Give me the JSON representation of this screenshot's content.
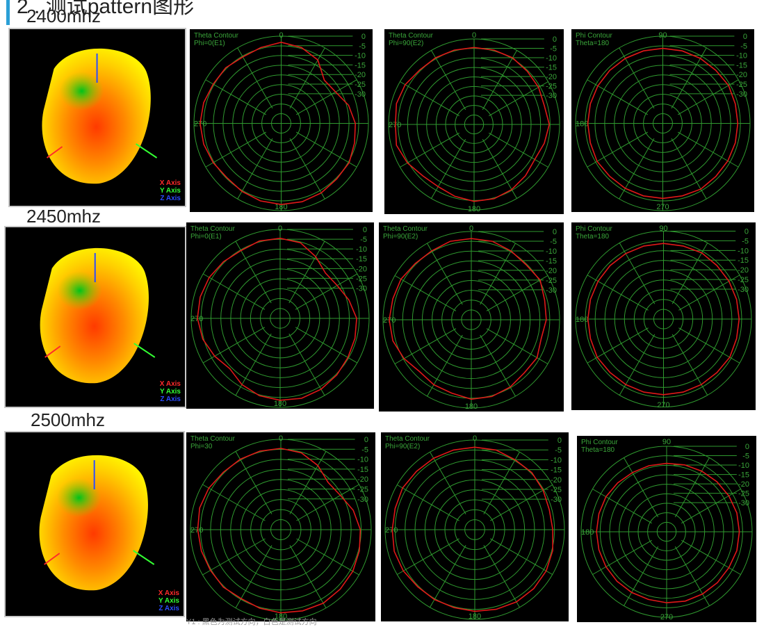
{
  "page": {
    "top_heading": "2 . 测试pattern图形",
    "caption": "Y1 : 黑色为测试方向，白色是测试方向"
  },
  "rows": [
    {
      "frequency": "2400mhz",
      "view3d": {
        "legend": [
          "X Axis",
          "Y Axis",
          "Z Axis"
        ]
      },
      "polars": [
        {
          "title": "Theta Contour",
          "subtitle": "Phi=0(E1)",
          "ticks": {
            "top": "0",
            "left": "270",
            "bottom": "180"
          }
        },
        {
          "title": "Theta Contour",
          "subtitle": "Phi=90(E2)",
          "ticks": {
            "top": "0",
            "left": "270",
            "bottom": "180"
          }
        },
        {
          "title": "Phi Contour",
          "subtitle": "Theta=180",
          "ticks": {
            "top": "90",
            "left": "180",
            "bottom": "270"
          }
        }
      ]
    },
    {
      "frequency": "2450mhz",
      "view3d": {
        "legend": [
          "X Axis",
          "Y Axis",
          "Z Axis"
        ]
      },
      "polars": [
        {
          "title": "Theta Contour",
          "subtitle": "Phi=0(E1)",
          "ticks": {
            "top": "0",
            "left": "270",
            "bottom": "180"
          }
        },
        {
          "title": "Theta Contour",
          "subtitle": "Phi=90(E2)",
          "ticks": {
            "top": "0",
            "left": "270",
            "bottom": "180"
          }
        },
        {
          "title": "Phi Contour",
          "subtitle": "Theta=180",
          "ticks": {
            "top": "90",
            "left": "180",
            "bottom": "270"
          }
        }
      ]
    },
    {
      "frequency": "2500mhz",
      "view3d": {
        "legend": [
          "X Axis",
          "Y Axis",
          "Z Axis"
        ]
      },
      "polars": [
        {
          "title": "Theta Contour",
          "subtitle": "Phi=30",
          "ticks": {
            "top": "0",
            "left": "270",
            "bottom": "180"
          }
        },
        {
          "title": "Theta Contour",
          "subtitle": "Phi=90(E2)",
          "ticks": {
            "top": "0",
            "left": "270",
            "bottom": "180"
          }
        },
        {
          "title": "Phi Contour",
          "subtitle": "Theta=180",
          "ticks": {
            "top": "90",
            "left": "180",
            "bottom": "270"
          }
        }
      ]
    }
  ],
  "colors": {
    "grid": "#2f9a2f",
    "trace": "#e01818",
    "plot_bg": "#000000",
    "x_axis": "#ff2a2a",
    "y_axis": "#33ff33",
    "z_axis": "#2a4cff"
  },
  "chart_data": {
    "type": "polar",
    "radial_scale_labels": [
      "0",
      "-5",
      "-10",
      "-15",
      "-20",
      "-25",
      "-30"
    ],
    "angle_step_deg": 15,
    "series": [
      {
        "values": [
          0.93,
          0.9,
          0.84,
          0.7,
          0.72,
          0.8,
          0.85,
          0.87,
          0.9,
          0.9,
          0.92,
          0.93,
          0.93,
          0.92,
          0.9,
          0.88,
          0.9,
          0.92,
          0.93,
          0.92,
          0.9,
          0.9,
          0.88,
          0.9
        ]
      },
      {
        "values": [
          0.9,
          0.9,
          0.9,
          0.88,
          0.87,
          0.85,
          0.88,
          0.85,
          0.82,
          0.85,
          0.88,
          0.9,
          0.9,
          0.87,
          0.84,
          0.85,
          0.9,
          0.94,
          0.92,
          0.94,
          0.93,
          0.9,
          0.9,
          0.9
        ]
      },
      {
        "values": [
          0.86,
          0.86,
          0.86,
          0.86,
          0.87,
          0.86,
          0.86,
          0.86,
          0.86,
          0.86,
          0.87,
          0.86,
          0.86,
          0.86,
          0.86,
          0.86,
          0.87,
          0.86,
          0.86,
          0.86,
          0.86,
          0.86,
          0.86,
          0.86
        ]
      },
      {
        "values": [
          0.9,
          0.88,
          0.8,
          0.72,
          0.74,
          0.8,
          0.86,
          0.87,
          0.88,
          0.9,
          0.92,
          0.93,
          0.92,
          0.9,
          0.86,
          0.8,
          0.85,
          0.9,
          0.93,
          0.93,
          0.92,
          0.9,
          0.88,
          0.9
        ]
      },
      {
        "values": [
          0.92,
          0.92,
          0.9,
          0.88,
          0.9,
          0.86,
          0.85,
          0.82,
          0.86,
          0.85,
          0.88,
          0.9,
          0.9,
          0.86,
          0.85,
          0.83,
          0.88,
          0.92,
          0.93,
          0.92,
          0.92,
          0.9,
          0.9,
          0.92
        ]
      },
      {
        "values": [
          0.86,
          0.86,
          0.87,
          0.86,
          0.86,
          0.86,
          0.86,
          0.86,
          0.87,
          0.86,
          0.86,
          0.86,
          0.86,
          0.86,
          0.86,
          0.86,
          0.87,
          0.86,
          0.86,
          0.86,
          0.86,
          0.86,
          0.86,
          0.86
        ]
      },
      {
        "values": [
          0.9,
          0.88,
          0.82,
          0.74,
          0.76,
          0.83,
          0.88,
          0.9,
          0.92,
          0.93,
          0.94,
          0.93,
          0.92,
          0.9,
          0.88,
          0.9,
          0.9,
          0.91,
          0.92,
          0.93,
          0.92,
          0.9,
          0.9,
          0.9
        ]
      },
      {
        "values": [
          0.92,
          0.92,
          0.9,
          0.9,
          0.88,
          0.86,
          0.87,
          0.9,
          0.92,
          0.93,
          0.93,
          0.92,
          0.91,
          0.9,
          0.9,
          0.9,
          0.92,
          0.93,
          0.92,
          0.92,
          0.93,
          0.92,
          0.92,
          0.92
        ]
      },
      {
        "values": [
          0.8,
          0.81,
          0.82,
          0.83,
          0.84,
          0.85,
          0.85,
          0.85,
          0.84,
          0.84,
          0.84,
          0.84,
          0.83,
          0.82,
          0.82,
          0.82,
          0.82,
          0.82,
          0.82,
          0.82,
          0.82,
          0.81,
          0.8,
          0.8
        ]
      }
    ]
  }
}
